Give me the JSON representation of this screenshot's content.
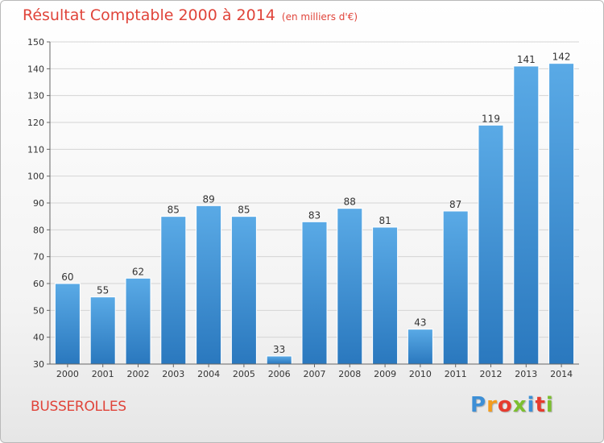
{
  "title": "Résultat Comptable 2000 à 2014",
  "unit": "(en milliers d'€)",
  "commune": "BUSSEROLLES",
  "logo": {
    "letters": [
      "P",
      "r",
      "o",
      "x",
      "i",
      "t",
      "i"
    ],
    "colors": [
      "#3d8fd6",
      "#f39c1e",
      "#e63b2e",
      "#7cbf2f",
      "#3d8fd6",
      "#e63b2e",
      "#7cbf2f"
    ]
  },
  "colors": {
    "title": "#e0443a",
    "bar_light": "#5aaae6",
    "bar_dark": "#2a78be",
    "grid": "#d4d4d4"
  },
  "chart_data": {
    "type": "bar",
    "title": "Résultat Comptable 2000 à 2014",
    "ylabel": "en milliers d'€",
    "xlabel": "",
    "categories": [
      "2000",
      "2001",
      "2002",
      "2003",
      "2004",
      "2005",
      "2006",
      "2007",
      "2008",
      "2009",
      "2010",
      "2011",
      "2012",
      "2013",
      "2014"
    ],
    "values": [
      60,
      55,
      62,
      85,
      89,
      85,
      33,
      83,
      88,
      81,
      43,
      87,
      119,
      141,
      142
    ],
    "ylim": [
      30,
      150
    ],
    "yticks": [
      30,
      40,
      50,
      60,
      70,
      80,
      90,
      100,
      110,
      120,
      130,
      140,
      150
    ],
    "grid": true,
    "data_labels": true
  }
}
